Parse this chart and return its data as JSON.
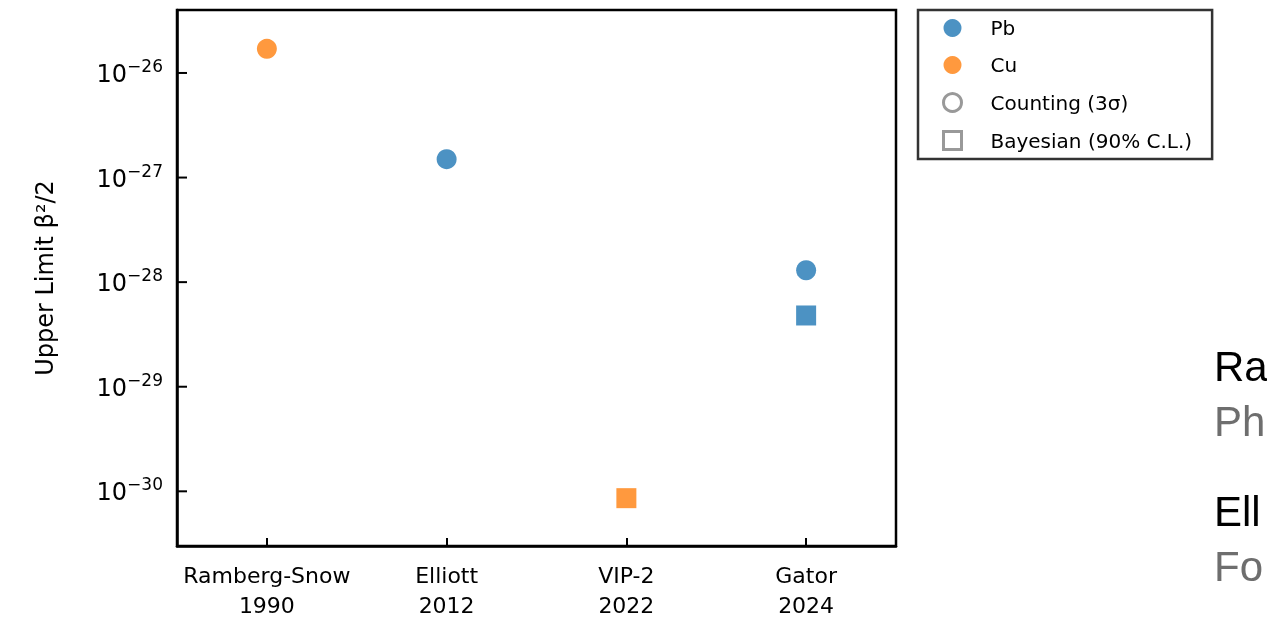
{
  "chart_data": {
    "type": "scatter",
    "ylabel": "Upper Limit β²/2",
    "categories": [
      "Ramberg-Snow\n1990",
      "Elliott\n2012",
      "VIP-2\n2022",
      "Gator\n2024"
    ],
    "series": [
      {
        "name": "Pb",
        "color": "#1f77b4",
        "marker": "circle",
        "values": [
          null,
          1.5e-27,
          null,
          1.3e-28
        ]
      },
      {
        "name": "Cu",
        "color": "#ff7f0e",
        "marker": "circle",
        "values": [
          1.7e-26,
          null,
          null,
          null
        ]
      },
      {
        "color": "#1f77b4",
        "marker": "square",
        "values": [
          null,
          null,
          null,
          4.8e-29
        ]
      },
      {
        "color": "#ff7f0e",
        "marker": "square",
        "values": [
          null,
          null,
          8.6e-31,
          null
        ]
      },
      {
        "name": "Counting (3σ)",
        "color": "#808080",
        "marker": "circle",
        "values": [
          null,
          null,
          null,
          null
        ]
      },
      {
        "name": "Bayesian (90% C.L.)",
        "color": "#808080",
        "marker": "square",
        "values": [
          null,
          null,
          null,
          null
        ]
      }
    ],
    "log": "y",
    "ylim": [
      3e-31,
      4e-26
    ],
    "yticks": [
      {
        "value": 1e-26,
        "label": "10$^{−26}$"
      },
      {
        "value": 1e-27,
        "label": "10$^{−27}$"
      },
      {
        "value": 1e-28,
        "label": "10$^{−28}$"
      },
      {
        "value": 1e-29,
        "label": "10$^{−29}$"
      },
      {
        "value": 1e-30,
        "label": "10$^{−30}$"
      }
    ],
    "legend": "top right",
    "grid": false,
    "annotations": [
      "Ra",
      "Ph",
      "Ell",
      "Fo"
    ]
  }
}
